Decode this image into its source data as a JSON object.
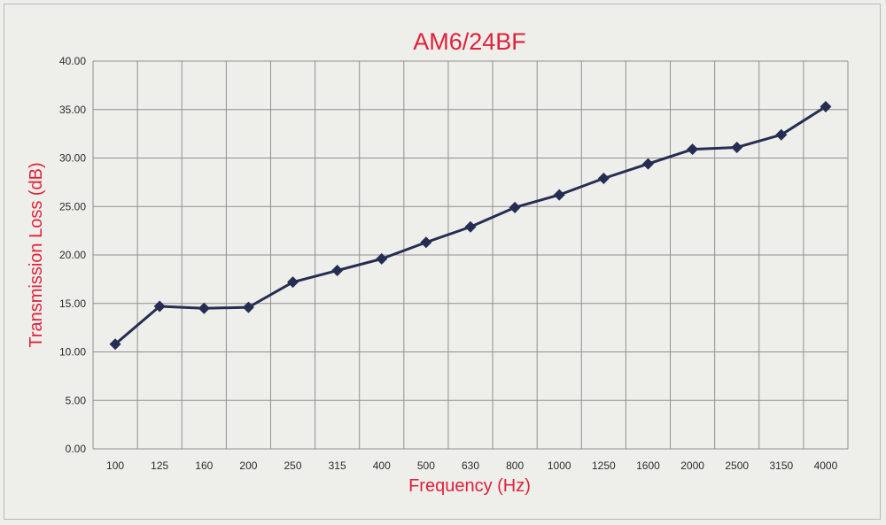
{
  "chart_data": {
    "type": "line",
    "title": "AM6/24BF",
    "xlabel": "Frequency (Hz)",
    "ylabel": "Transmission Loss (dB)",
    "categories": [
      "100",
      "125",
      "160",
      "200",
      "250",
      "315",
      "400",
      "500",
      "630",
      "800",
      "1000",
      "1250",
      "1600",
      "2000",
      "2500",
      "3150",
      "4000"
    ],
    "y_ticks": [
      "0.00",
      "5.00",
      "10.00",
      "15.00",
      "20.00",
      "25.00",
      "30.00",
      "35.00",
      "40.00"
    ],
    "ylim": [
      0,
      40
    ],
    "grid": true,
    "legend": "none",
    "series": [
      {
        "values": [
          10.8,
          14.7,
          14.5,
          14.6,
          17.2,
          18.4,
          19.6,
          21.3,
          22.9,
          24.9,
          26.2,
          27.9,
          29.4,
          30.9,
          31.1,
          32.4,
          35.3
        ]
      }
    ]
  },
  "colors": {
    "background": "#eeeeea",
    "title": "#e0213a",
    "axis_title": "#e0213a",
    "grid": "#909090",
    "series": "#252d52"
  }
}
